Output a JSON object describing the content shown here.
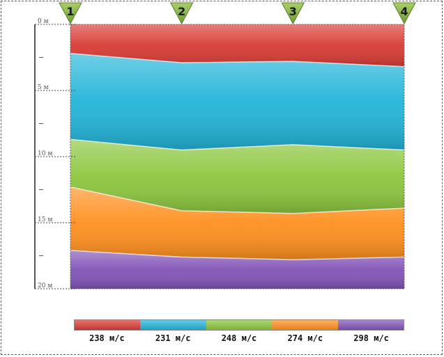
{
  "depth_axis": {
    "ticks": [
      {
        "label": "0 м",
        "value": 0
      },
      {
        "label": "5 м",
        "value": 5
      },
      {
        "label": "10 м",
        "value": 10
      },
      {
        "label": "15 м",
        "value": 15
      },
      {
        "label": "20 м",
        "value": 20
      }
    ],
    "minor_ticks": [
      2.5,
      7.5,
      12.5,
      17.5
    ],
    "range": [
      0,
      20
    ]
  },
  "markers": [
    {
      "label": "1",
      "position": 1
    },
    {
      "label": "2",
      "position": 2
    },
    {
      "label": "3",
      "position": 3
    },
    {
      "label": "4",
      "position": 4
    }
  ],
  "layers": [
    {
      "velocity": "238 м/с",
      "color": "#d83a33",
      "top_depth": [
        0,
        0,
        0,
        0
      ],
      "bottom_depth": [
        2.2,
        2.9,
        2.8,
        3.2
      ]
    },
    {
      "velocity": "231 м/с",
      "color": "#22b4d8",
      "top_depth": [
        2.2,
        2.9,
        2.8,
        3.2
      ],
      "bottom_depth": [
        8.7,
        9.5,
        9.1,
        9.5
      ]
    },
    {
      "velocity": "248 м/с",
      "color": "#8cc63e",
      "top_depth": [
        8.7,
        9.5,
        9.1,
        9.5
      ],
      "bottom_depth": [
        12.3,
        14.1,
        14.3,
        13.9
      ]
    },
    {
      "velocity": "274 м/с",
      "color": "#ff8f1f",
      "top_depth": [
        12.3,
        14.1,
        14.3,
        13.9
      ],
      "bottom_depth": [
        17.1,
        17.6,
        17.8,
        17.6
      ]
    },
    {
      "velocity": "298 м/с",
      "color": "#8254b8",
      "top_depth": [
        17.1,
        17.6,
        17.8,
        17.6
      ],
      "bottom_depth": [
        20,
        20,
        20,
        20
      ]
    }
  ]
}
